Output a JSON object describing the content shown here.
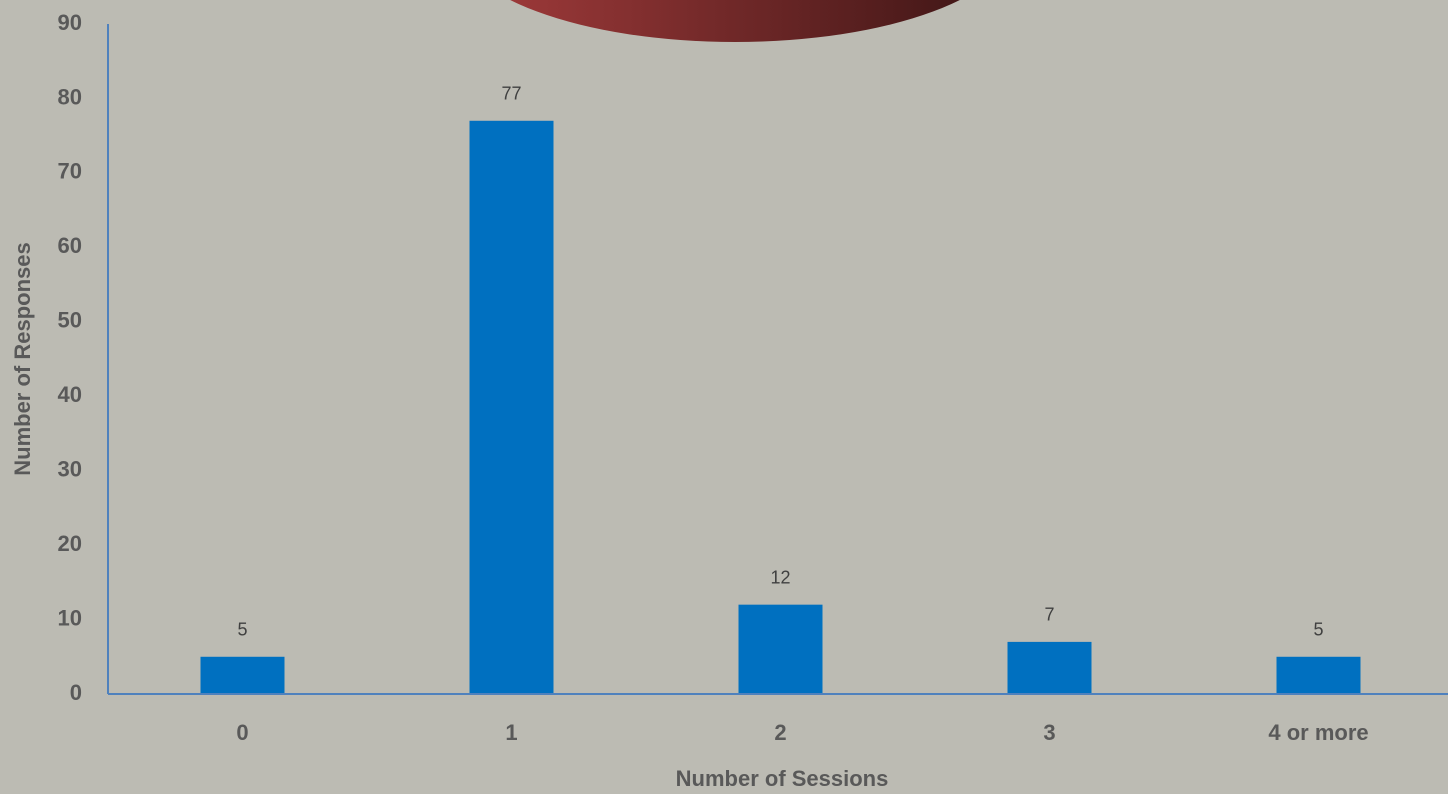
{
  "chart_data": {
    "type": "bar",
    "x_label": "Number of Sessions",
    "y_label": "Number of Responses",
    "categories": [
      "0",
      "1",
      "2",
      "3",
      "4 or more"
    ],
    "values": [
      5,
      77,
      12,
      7,
      5
    ],
    "color": "#0070c0",
    "ylim": [
      0,
      90
    ],
    "yticks": [
      0,
      10,
      20,
      30,
      40,
      50,
      60,
      70,
      80,
      90
    ],
    "grid": false
  }
}
